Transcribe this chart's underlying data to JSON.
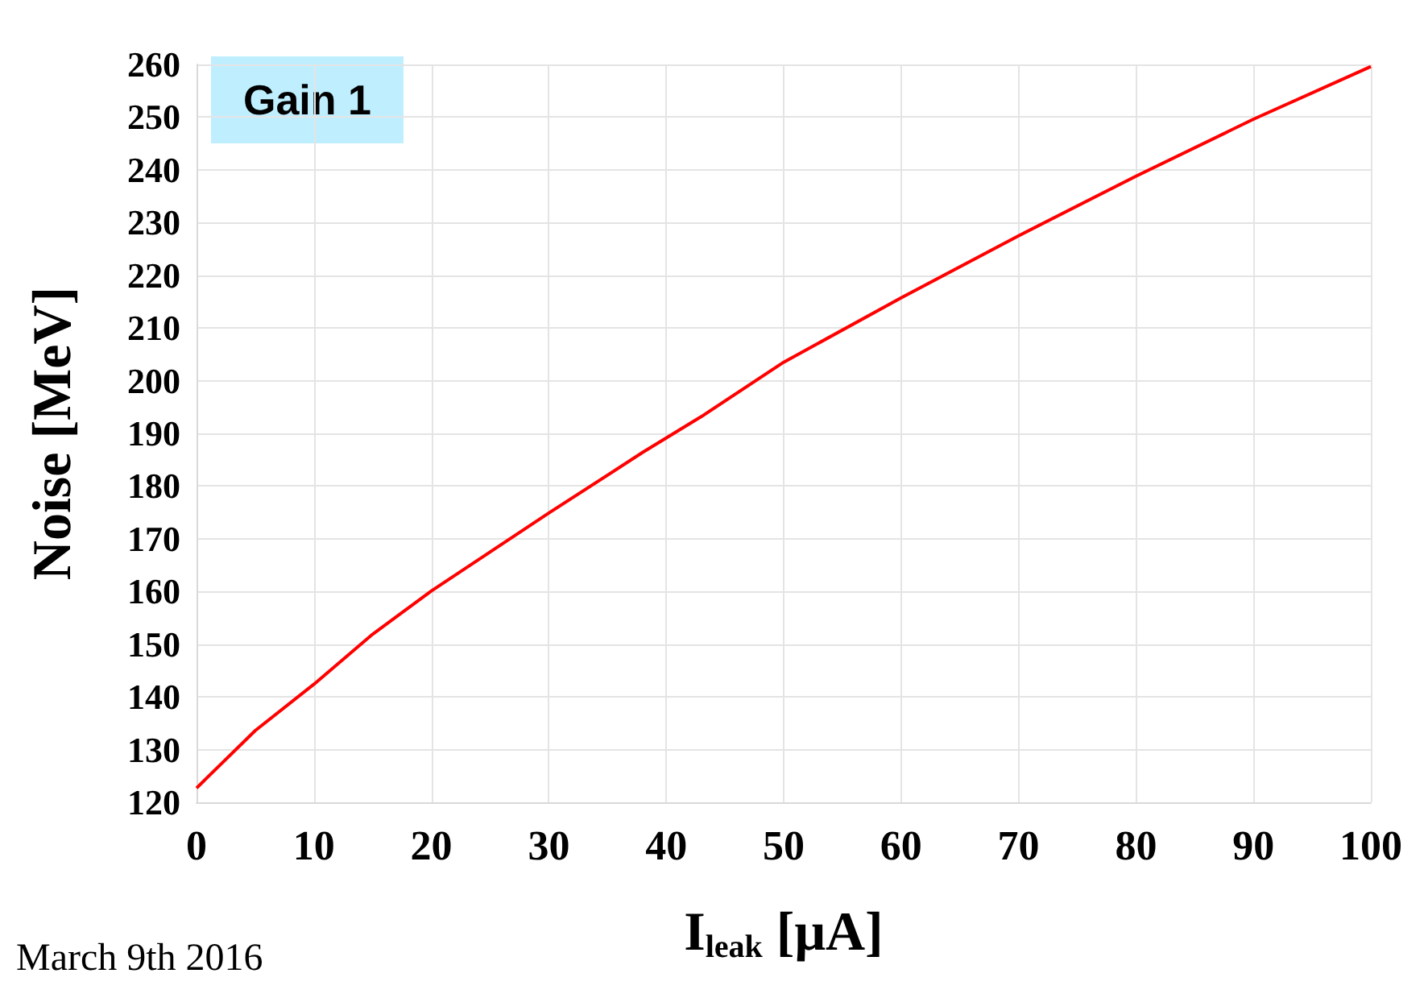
{
  "chart_data": {
    "type": "line",
    "xlabel": "I$_{leak}$ [μA]",
    "ylabel": "Noise [MeV]",
    "x": [
      0,
      5,
      10,
      15,
      20,
      30,
      38,
      43,
      50,
      60,
      70,
      80,
      90,
      100
    ],
    "series": [
      {
        "color": "#ff0000",
        "values": [
          122.7,
          133.6,
          142.4,
          151.9,
          160.1,
          174.9,
          186.4,
          193.2,
          203.5,
          215.7,
          227.5,
          238.8,
          249.6,
          259.6
        ]
      }
    ],
    "xlim": [
      0,
      100
    ],
    "xticks": [
      0,
      10,
      20,
      30,
      40,
      50,
      60,
      70,
      80,
      90,
      100
    ],
    "ylim": [
      120,
      260
    ],
    "yticks": [
      120,
      130,
      140,
      150,
      160,
      170,
      180,
      190,
      200,
      210,
      220,
      230,
      240,
      250,
      260
    ],
    "grid": true,
    "marker": "none",
    "line_style": "solid",
    "annotations": [
      "Gain 1",
      "March 9th 2016"
    ]
  }
}
